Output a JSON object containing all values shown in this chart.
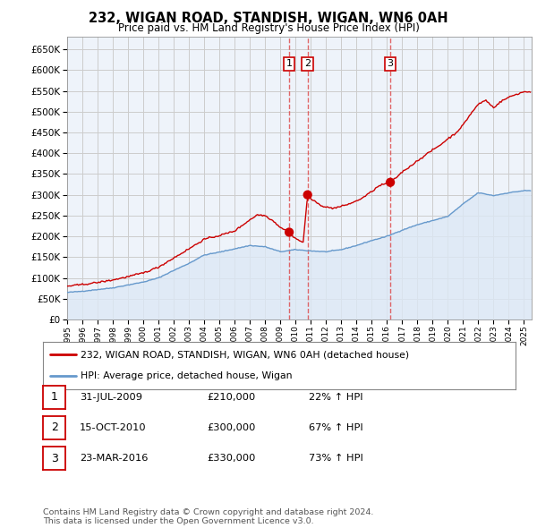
{
  "title": "232, WIGAN ROAD, STANDISH, WIGAN, WN6 0AH",
  "subtitle": "Price paid vs. HM Land Registry's House Price Index (HPI)",
  "sale_labels": [
    "1",
    "2",
    "3"
  ],
  "sale_dates_decimal": [
    2009.58,
    2010.79,
    2016.22
  ],
  "sale_prices": [
    210000,
    300000,
    330000
  ],
  "sale_dates_str": [
    "31-JUL-2009",
    "15-OCT-2010",
    "23-MAR-2016"
  ],
  "sale_prices_str": [
    "£210,000",
    "£300,000",
    "£330,000"
  ],
  "sale_hpi_str": [
    "22% ↑ HPI",
    "67% ↑ HPI",
    "73% ↑ HPI"
  ],
  "red_line_color": "#cc0000",
  "blue_line_color": "#6699cc",
  "blue_fill_color": "#dde8f5",
  "vline_color": "#dd4444",
  "background_color": "#ffffff",
  "chart_bg_color": "#eef3fa",
  "grid_color": "#cccccc",
  "ylim": [
    0,
    680000
  ],
  "xlim_start": 1995.0,
  "xlim_end": 2025.5,
  "ytick_values": [
    0,
    50000,
    100000,
    150000,
    200000,
    250000,
    300000,
    350000,
    400000,
    450000,
    500000,
    550000,
    600000,
    650000
  ],
  "legend_line1": "232, WIGAN ROAD, STANDISH, WIGAN, WN6 0AH (detached house)",
  "legend_line2": "HPI: Average price, detached house, Wigan",
  "footer_text": "Contains HM Land Registry data © Crown copyright and database right 2024.\nThis data is licensed under the Open Government Licence v3.0."
}
